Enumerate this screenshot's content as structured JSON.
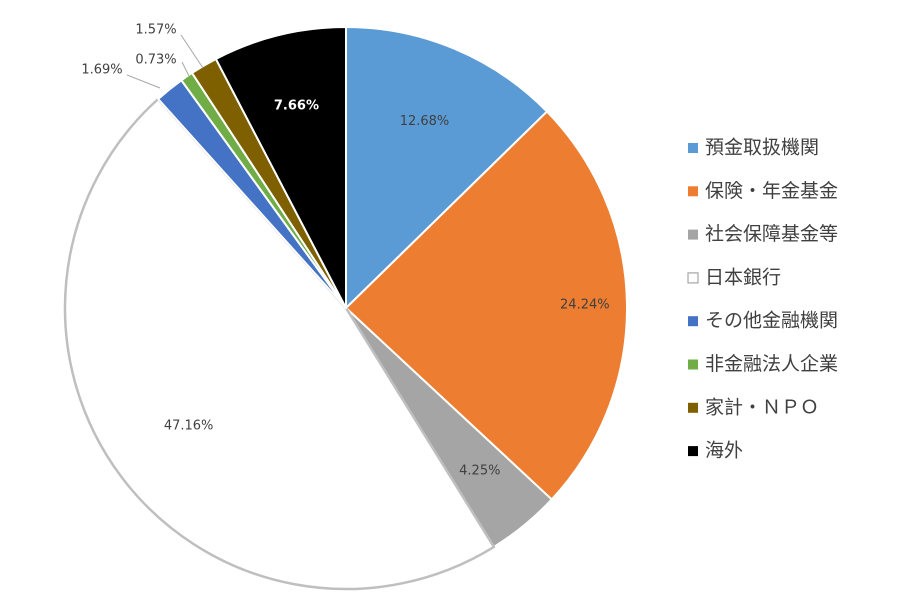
{
  "chart_data": {
    "type": "pie",
    "title": "",
    "categories": [
      "預金取扱機関",
      "保険・年金基金",
      "社会保障基金等",
      "日本銀行",
      "その他金融機関",
      "非金融法人企業",
      "家計・ＮＰＯ",
      "海外"
    ],
    "values": [
      12.68,
      24.24,
      4.25,
      47.16,
      1.69,
      0.73,
      1.57,
      7.66
    ],
    "value_labels": [
      "12.68%",
      "24.24%",
      "4.25%",
      "47.16%",
      "1.69%",
      "0.73%",
      "1.57%",
      "7.66%"
    ],
    "colors": [
      "#5b9bd5",
      "#ed7d31",
      "#a5a5a5",
      "#ffffff",
      "#4472c4",
      "#70ad47",
      "#7f6000",
      "#000000"
    ],
    "label_colors": [
      "#404040",
      "#404040",
      "#404040",
      "#404040",
      "#404040",
      "#404040",
      "#404040",
      "#ffffff"
    ],
    "legend_position": "right",
    "start_angle": "12 o'clock",
    "direction": "clockwise"
  }
}
